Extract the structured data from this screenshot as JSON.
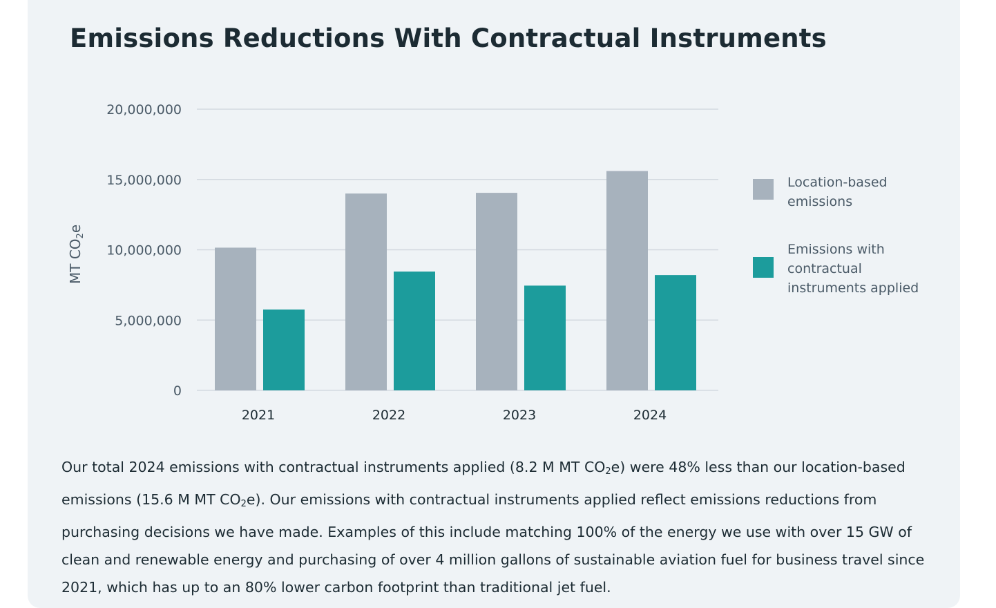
{
  "title": "Emissions Reductions With Contractual Instruments",
  "chart_data": {
    "type": "bar",
    "title": "Emissions Reductions With Contractual Instruments",
    "xlabel": "",
    "ylabel": "MT CO2e",
    "ylabel_parts": {
      "main": "MT CO",
      "sub": "2",
      "tail": "e"
    },
    "categories": [
      "2021",
      "2022",
      "2023",
      "2024"
    ],
    "series": [
      {
        "name": "Location-based emissions",
        "color": "#a7b2bd",
        "values": [
          10150000,
          14000000,
          14050000,
          15600000
        ]
      },
      {
        "name": "Emissions with contractual instruments applied",
        "color": "#1c9c9c",
        "values": [
          5750000,
          8450000,
          7450000,
          8200000
        ]
      }
    ],
    "ylim": [
      0,
      20000000
    ],
    "yticks": [
      0,
      5000000,
      10000000,
      15000000,
      20000000
    ],
    "ytick_labels": [
      "0",
      "5,000,000",
      "10,000,000",
      "15,000,000",
      "20,000,000"
    ],
    "grid": true,
    "legend_position": "right"
  },
  "legend": [
    {
      "label": "Location-based emissions",
      "color": "#a7b2bd"
    },
    {
      "label": "Emissions with contractual instruments applied",
      "color": "#1c9c9c"
    }
  ],
  "description": {
    "parts": [
      "Our total 2024 emissions with contractual instruments applied (8.2 M MT CO",
      "2",
      "e) were 48% less than our location-based emissions (15.6 M MT CO",
      "2",
      "e). Our emissions with contractual instruments applied reflect emissions reductions from purchasing decisions we have made. Examples of this include matching 100% of the energy we use with over 15 GW of clean and renewable energy and purchasing of over 4 million gallons of sustainable aviation fuel for business travel since 2021, which has up to an 80% lower carbon footprint than traditional jet fuel."
    ]
  }
}
